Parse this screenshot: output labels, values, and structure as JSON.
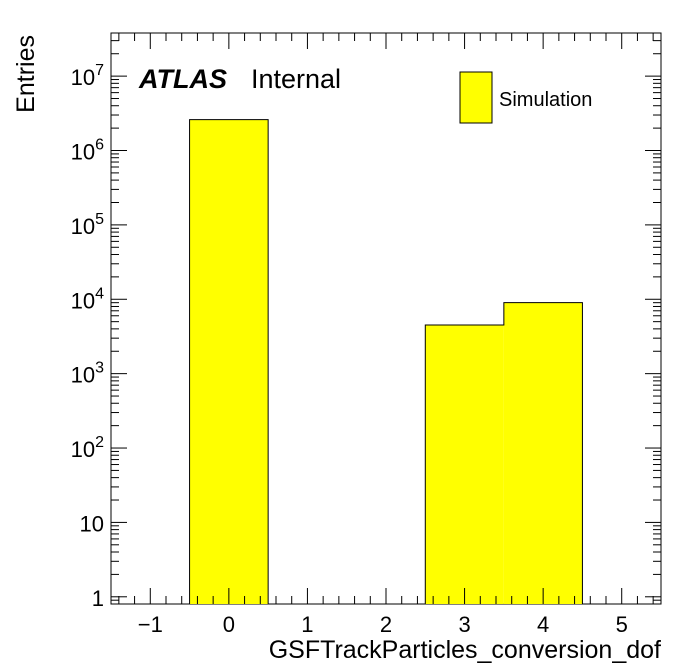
{
  "chart_data": {
    "type": "bar",
    "histogram": true,
    "xlabel": "GSFTrackParticles_conversion_dof",
    "ylabel": "Entries",
    "xlim": [
      -1.5,
      5.5
    ],
    "ylim": [
      0.8,
      38000000
    ],
    "ylog": true,
    "grid": false,
    "legend_position": "top-right",
    "x_ticks": [
      {
        "value": -1,
        "label": "−1"
      },
      {
        "value": 0,
        "label": "0"
      },
      {
        "value": 1,
        "label": "1"
      },
      {
        "value": 2,
        "label": "2"
      },
      {
        "value": 3,
        "label": "3"
      },
      {
        "value": 4,
        "label": "4"
      },
      {
        "value": 5,
        "label": "5"
      }
    ],
    "y_ticks": [
      {
        "value": 1,
        "base": "1",
        "exp": ""
      },
      {
        "value": 10,
        "base": "10",
        "exp": ""
      },
      {
        "value": 100,
        "base": "10",
        "exp": "2"
      },
      {
        "value": 1000,
        "base": "10",
        "exp": "3"
      },
      {
        "value": 10000,
        "base": "10",
        "exp": "4"
      },
      {
        "value": 100000,
        "base": "10",
        "exp": "5"
      },
      {
        "value": 1000000,
        "base": "10",
        "exp": "6"
      },
      {
        "value": 10000000,
        "base": "10",
        "exp": "7"
      }
    ],
    "series": [
      {
        "name": "Simulation",
        "color": "#ffff00",
        "bins": [
          {
            "low": -0.5,
            "high": 0.5,
            "value": 2600000
          },
          {
            "low": 0.5,
            "high": 1.5,
            "value": 0
          },
          {
            "low": 1.5,
            "high": 2.5,
            "value": 0
          },
          {
            "low": 2.5,
            "high": 3.5,
            "value": 4500
          },
          {
            "low": 3.5,
            "high": 4.5,
            "value": 9000
          }
        ]
      }
    ],
    "annotations": {
      "experiment": "ATLAS",
      "status": "Internal"
    }
  }
}
